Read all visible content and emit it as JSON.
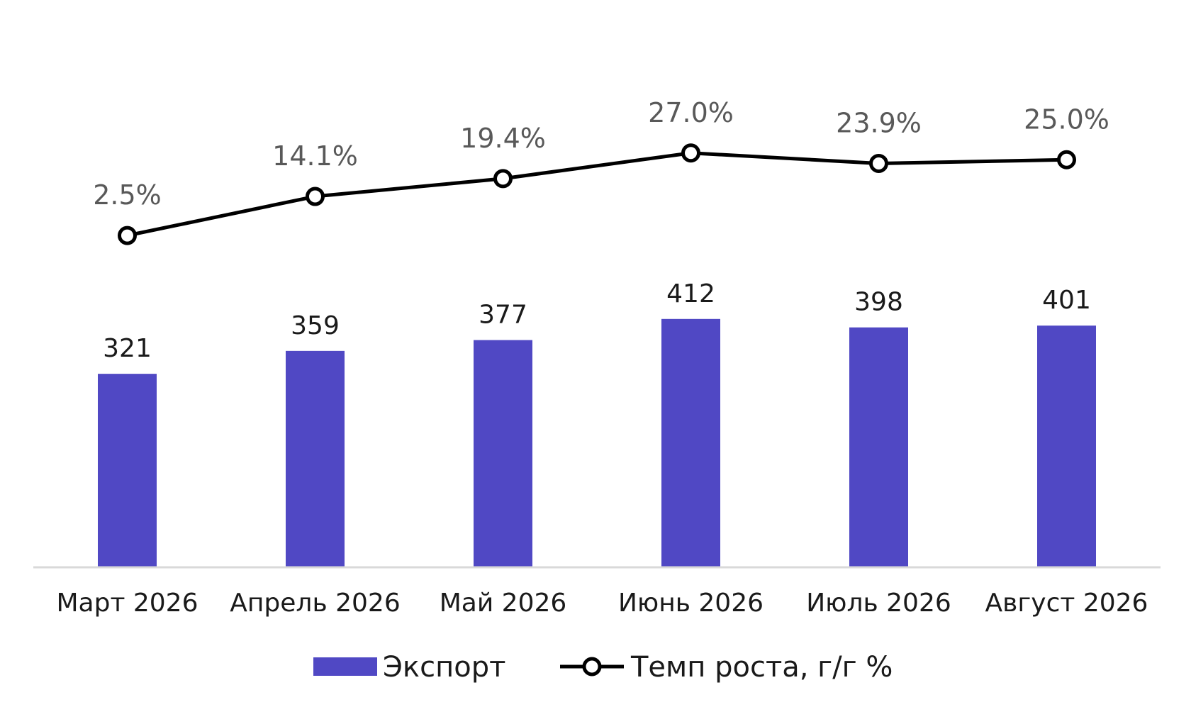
{
  "chart_data": {
    "type": "bar",
    "title": "",
    "xlabel": "",
    "ylabel": "",
    "categories": [
      "Март 2026",
      "Апрель 2026",
      "Май 2026",
      "Июнь 2026",
      "Июль 2026",
      "Август 2026"
    ],
    "series": [
      {
        "name": "Экспорт",
        "type": "bar",
        "color": "#5048C4",
        "values": [
          321,
          359,
          377,
          412,
          398,
          401
        ],
        "labels": [
          "321",
          "359",
          "377",
          "412",
          "398",
          "401"
        ]
      },
      {
        "name": "Темп роста, г/г %",
        "type": "line",
        "marker": "open-circle",
        "color": "#000000",
        "values": [
          2.5,
          14.1,
          19.4,
          27.0,
          23.9,
          25.0
        ],
        "labels": [
          "2.5%",
          "14.1%",
          "19.4%",
          "27.0%",
          "23.9%",
          "25.0%"
        ]
      }
    ],
    "legend_position": "bottom-center",
    "grid": false,
    "axis_color": "#D9D9D9"
  }
}
